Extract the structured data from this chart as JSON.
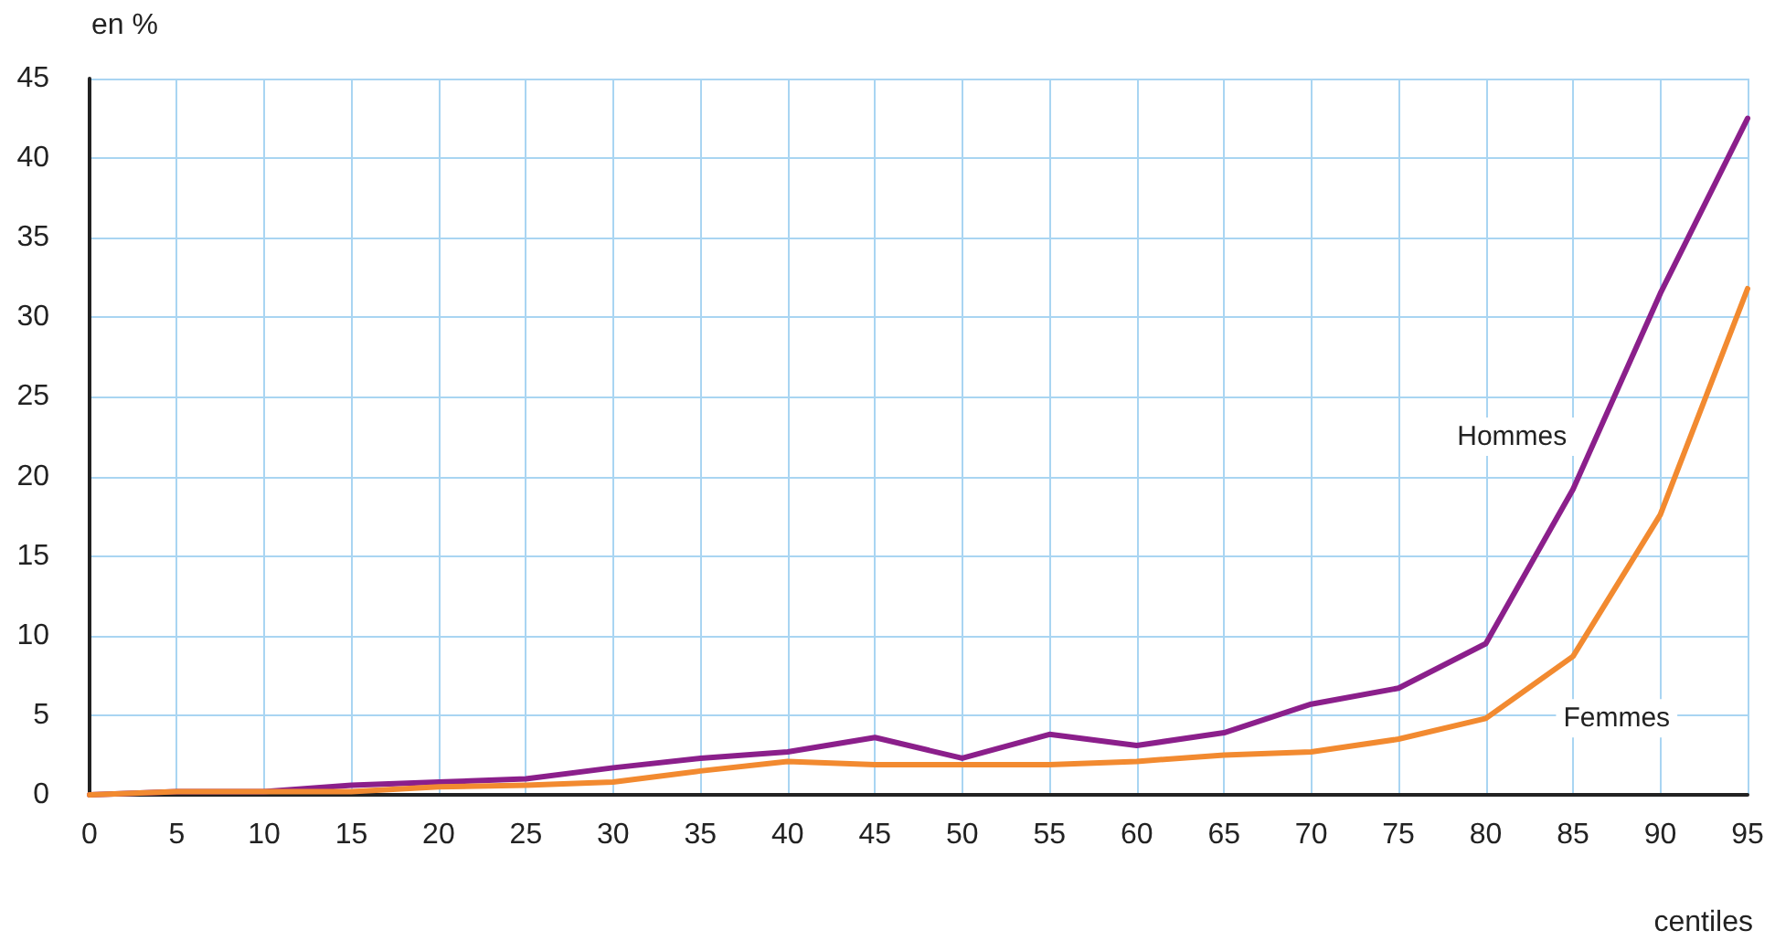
{
  "chart_data": {
    "type": "line",
    "xlabel": "centiles",
    "ylabel": "en %",
    "x": [
      0,
      5,
      10,
      15,
      20,
      25,
      30,
      35,
      40,
      45,
      50,
      55,
      60,
      65,
      70,
      75,
      80,
      85,
      90,
      95
    ],
    "series": [
      {
        "name": "Hommes",
        "color": "#8b1f8b",
        "values": [
          0,
          0.2,
          0.2,
          0.6,
          0.8,
          1.0,
          1.7,
          2.3,
          2.7,
          3.6,
          2.3,
          3.8,
          3.1,
          3.9,
          5.7,
          6.7,
          9.5,
          19.2,
          31.5,
          42.5
        ]
      },
      {
        "name": "Femmes",
        "color": "#f28a30",
        "values": [
          0,
          0.2,
          0.2,
          0.2,
          0.5,
          0.6,
          0.8,
          1.5,
          2.1,
          1.9,
          1.9,
          1.9,
          2.1,
          2.5,
          2.7,
          3.5,
          4.8,
          8.7,
          17.6,
          31.8
        ]
      }
    ],
    "xlim": [
      0,
      95
    ],
    "xticks": [
      0,
      5,
      10,
      15,
      20,
      25,
      30,
      35,
      40,
      45,
      50,
      55,
      60,
      65,
      70,
      75,
      80,
      85,
      90,
      95
    ],
    "ylim": [
      0,
      45
    ],
    "yticks": [
      0,
      5,
      10,
      15,
      20,
      25,
      30,
      35,
      40,
      45
    ],
    "grid": true,
    "legend": false,
    "marker": "none",
    "line_style": "solid"
  }
}
